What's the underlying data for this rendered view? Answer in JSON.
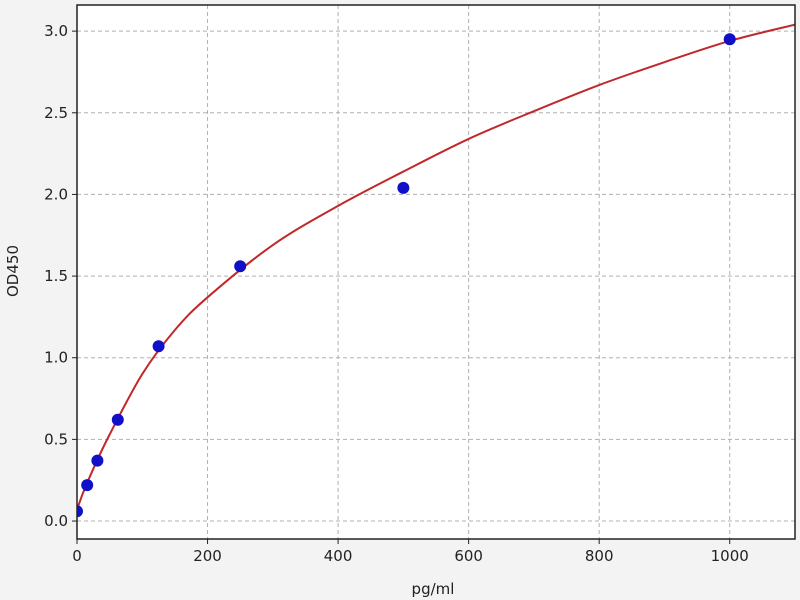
{
  "chart_data": {
    "type": "scatter",
    "title": "",
    "xlabel": "pg/ml",
    "ylabel": "OD450",
    "xlim": [
      0,
      1100
    ],
    "ylim": [
      -0.11,
      3.16
    ],
    "xticks": [
      0,
      200,
      400,
      600,
      800,
      1000
    ],
    "yticks": [
      0.0,
      0.5,
      1.0,
      1.5,
      2.0,
      2.5,
      3.0
    ],
    "grid": true,
    "points": {
      "color": "#1010c8",
      "x": [
        0,
        15.6,
        31.25,
        62.5,
        125,
        250,
        500,
        1000
      ],
      "y": [
        0.06,
        0.22,
        0.37,
        0.62,
        1.07,
        1.56,
        2.04,
        2.95
      ]
    },
    "fit_curve": {
      "color": "#c0282a",
      "x": [
        0,
        10,
        25,
        50,
        100,
        150,
        200,
        300,
        400,
        500,
        600,
        700,
        800,
        900,
        1000,
        1100
      ],
      "y": [
        0.07,
        0.18,
        0.32,
        0.53,
        0.9,
        1.17,
        1.37,
        1.69,
        1.93,
        2.14,
        2.34,
        2.51,
        2.67,
        2.81,
        2.94,
        3.04
      ]
    }
  }
}
